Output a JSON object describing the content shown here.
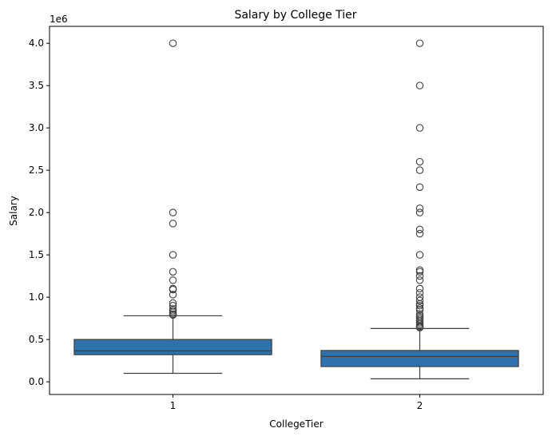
{
  "chart_data": {
    "type": "box",
    "title": "Salary by College Tier",
    "xlabel": "CollegeTier",
    "ylabel": "Salary",
    "y_offset_label": "1e6",
    "categories": [
      "1",
      "2"
    ],
    "ylim": [
      -0.15,
      4.2
    ],
    "yticks": [
      0.0,
      0.5,
      1.0,
      1.5,
      2.0,
      2.5,
      3.0,
      3.5,
      4.0
    ],
    "ytick_labels": [
      "0.0",
      "0.5",
      "1.0",
      "1.5",
      "2.0",
      "2.5",
      "3.0",
      "3.5",
      "4.0"
    ],
    "box_color": "#2e72ad",
    "edge_color": "#3f3f3f",
    "grid": false,
    "boxes": [
      {
        "category": "1",
        "whisker_low": 0.1,
        "q1": 0.32,
        "median": 0.365,
        "q3": 0.5,
        "whisker_high": 0.78,
        "outliers": [
          4.0,
          2.0,
          1.87,
          1.5,
          1.3,
          1.2,
          1.1,
          1.09,
          1.03,
          0.93,
          0.9,
          0.86,
          0.84,
          0.82,
          0.8,
          0.79
        ]
      },
      {
        "category": "2",
        "whisker_low": 0.035,
        "q1": 0.18,
        "median": 0.3,
        "q3": 0.37,
        "whisker_high": 0.63,
        "outliers": [
          4.0,
          3.5,
          3.0,
          2.6,
          2.5,
          2.3,
          2.05,
          2.0,
          1.8,
          1.75,
          1.5,
          1.32,
          1.3,
          1.25,
          1.2,
          1.1,
          1.05,
          1.0,
          0.96,
          0.92,
          0.9,
          0.87,
          0.85,
          0.8,
          0.78,
          0.76,
          0.74,
          0.72,
          0.7,
          0.68,
          0.66,
          0.65,
          0.64
        ]
      }
    ]
  }
}
